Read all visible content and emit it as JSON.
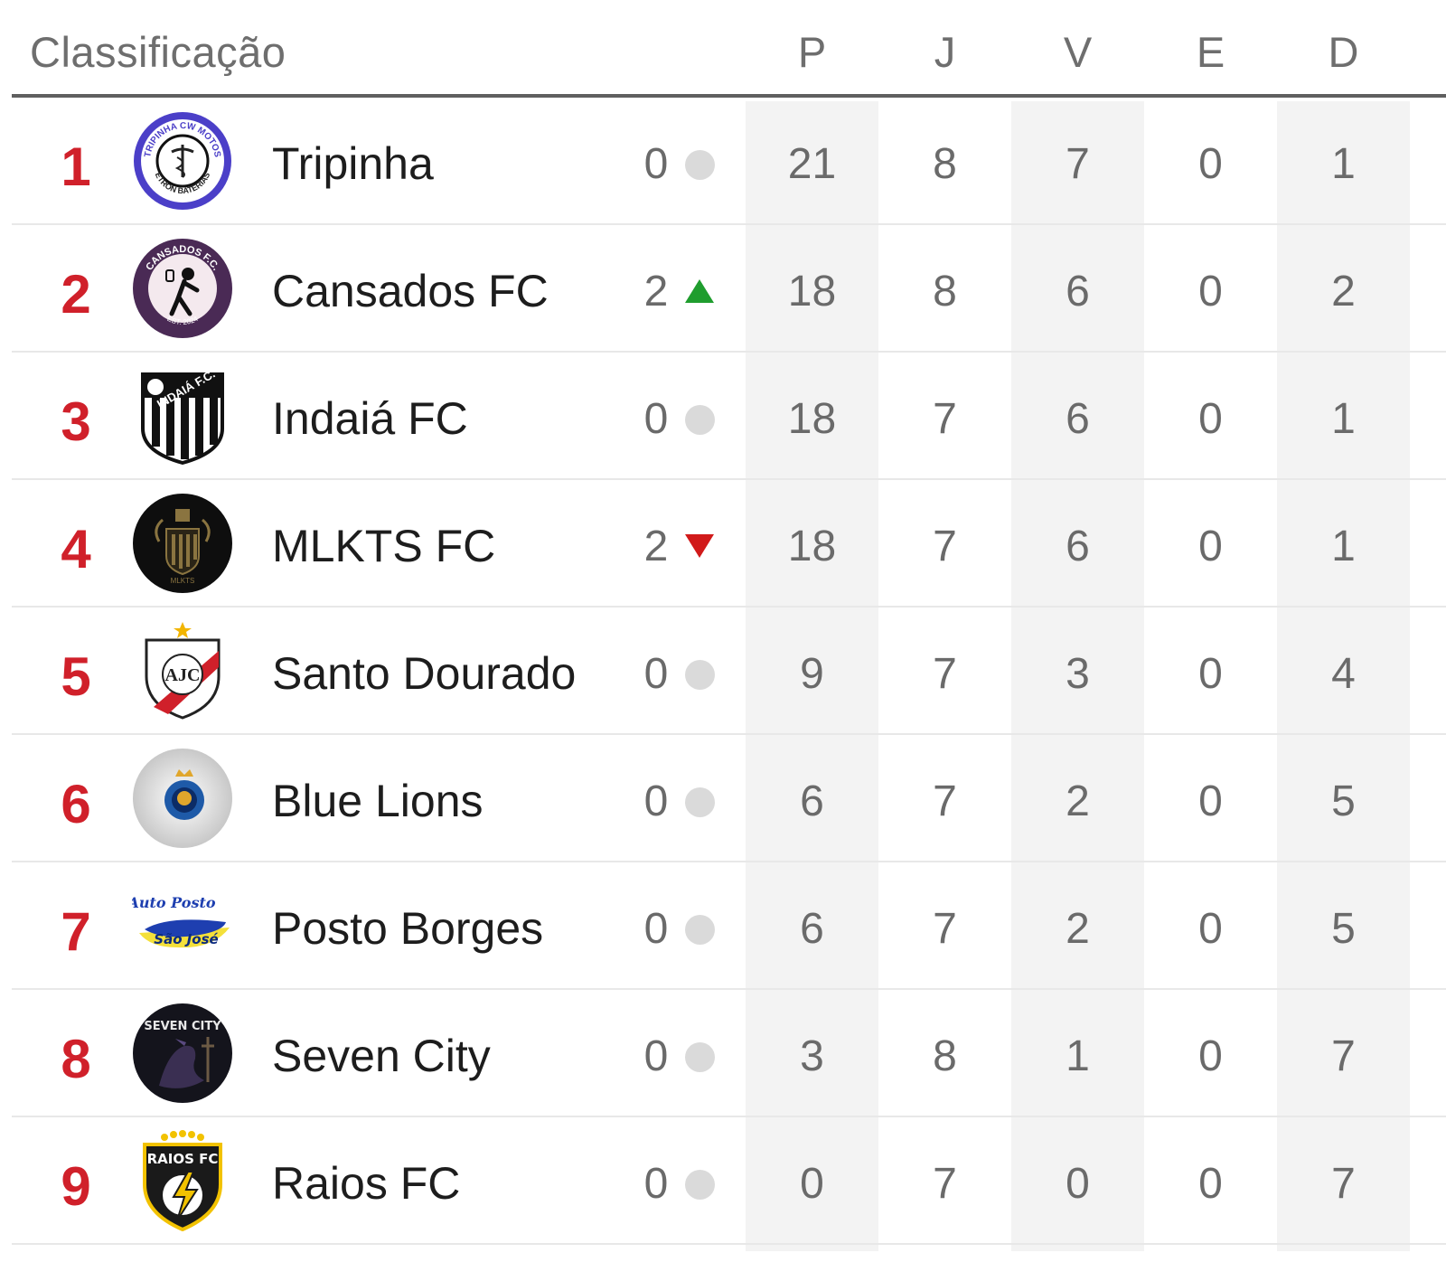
{
  "header": {
    "title": "Classificação",
    "columns": [
      "P",
      "J",
      "V",
      "E",
      "D"
    ]
  },
  "colors": {
    "position": "#d0202a",
    "trend_up": "#1f9d2e",
    "trend_down": "#d11a1a",
    "trend_same": "#dadada"
  },
  "rows": [
    {
      "pos": "1",
      "team": "Tripinha",
      "change": "0",
      "trend": "same",
      "crest": "tripinha-crest-icon",
      "P": "21",
      "J": "8",
      "V": "7",
      "E": "0",
      "D": "1"
    },
    {
      "pos": "2",
      "team": "Cansados FC",
      "change": "2",
      "trend": "up",
      "crest": "cansados-crest-icon",
      "P": "18",
      "J": "8",
      "V": "6",
      "E": "0",
      "D": "2"
    },
    {
      "pos": "3",
      "team": "Indaiá FC",
      "change": "0",
      "trend": "same",
      "crest": "indaia-crest-icon",
      "P": "18",
      "J": "7",
      "V": "6",
      "E": "0",
      "D": "1"
    },
    {
      "pos": "4",
      "team": "MLKTS FC",
      "change": "2",
      "trend": "down",
      "crest": "mlkts-crest-icon",
      "P": "18",
      "J": "7",
      "V": "6",
      "E": "0",
      "D": "1"
    },
    {
      "pos": "5",
      "team": "Santo Dourado",
      "change": "0",
      "trend": "same",
      "crest": "santo-dourado-crest-icon",
      "P": "9",
      "J": "7",
      "V": "3",
      "E": "0",
      "D": "4"
    },
    {
      "pos": "6",
      "team": "Blue Lions",
      "change": "0",
      "trend": "same",
      "crest": "blue-lions-crest-icon",
      "P": "6",
      "J": "7",
      "V": "2",
      "E": "0",
      "D": "5"
    },
    {
      "pos": "7",
      "team": "Posto Borges",
      "change": "0",
      "trend": "same",
      "crest": "posto-borges-crest-icon",
      "P": "6",
      "J": "7",
      "V": "2",
      "E": "0",
      "D": "5"
    },
    {
      "pos": "8",
      "team": "Seven City",
      "change": "0",
      "trend": "same",
      "crest": "seven-city-crest-icon",
      "P": "3",
      "J": "8",
      "V": "1",
      "E": "0",
      "D": "7"
    },
    {
      "pos": "9",
      "team": "Raios FC",
      "change": "0",
      "trend": "same",
      "crest": "raios-crest-icon",
      "P": "0",
      "J": "7",
      "V": "0",
      "E": "0",
      "D": "7"
    }
  ],
  "crest_text": {
    "tripinha_top": "TRIPINHA CW MOTOS",
    "tripinha_bottom": "ETRON BATERIAS",
    "cansados_top": "CANSADOS F.C.",
    "cansados_bottom": "EST. 2024",
    "indaia": "INDAIÁ F.C.",
    "mlkts": "MLKTS",
    "santo_dourado": "AJC",
    "posto_borges_top": "Auto Posto",
    "posto_borges_bottom": "São José",
    "seven_city": "SEVEN CITY",
    "raios": "RAIOS FC"
  }
}
